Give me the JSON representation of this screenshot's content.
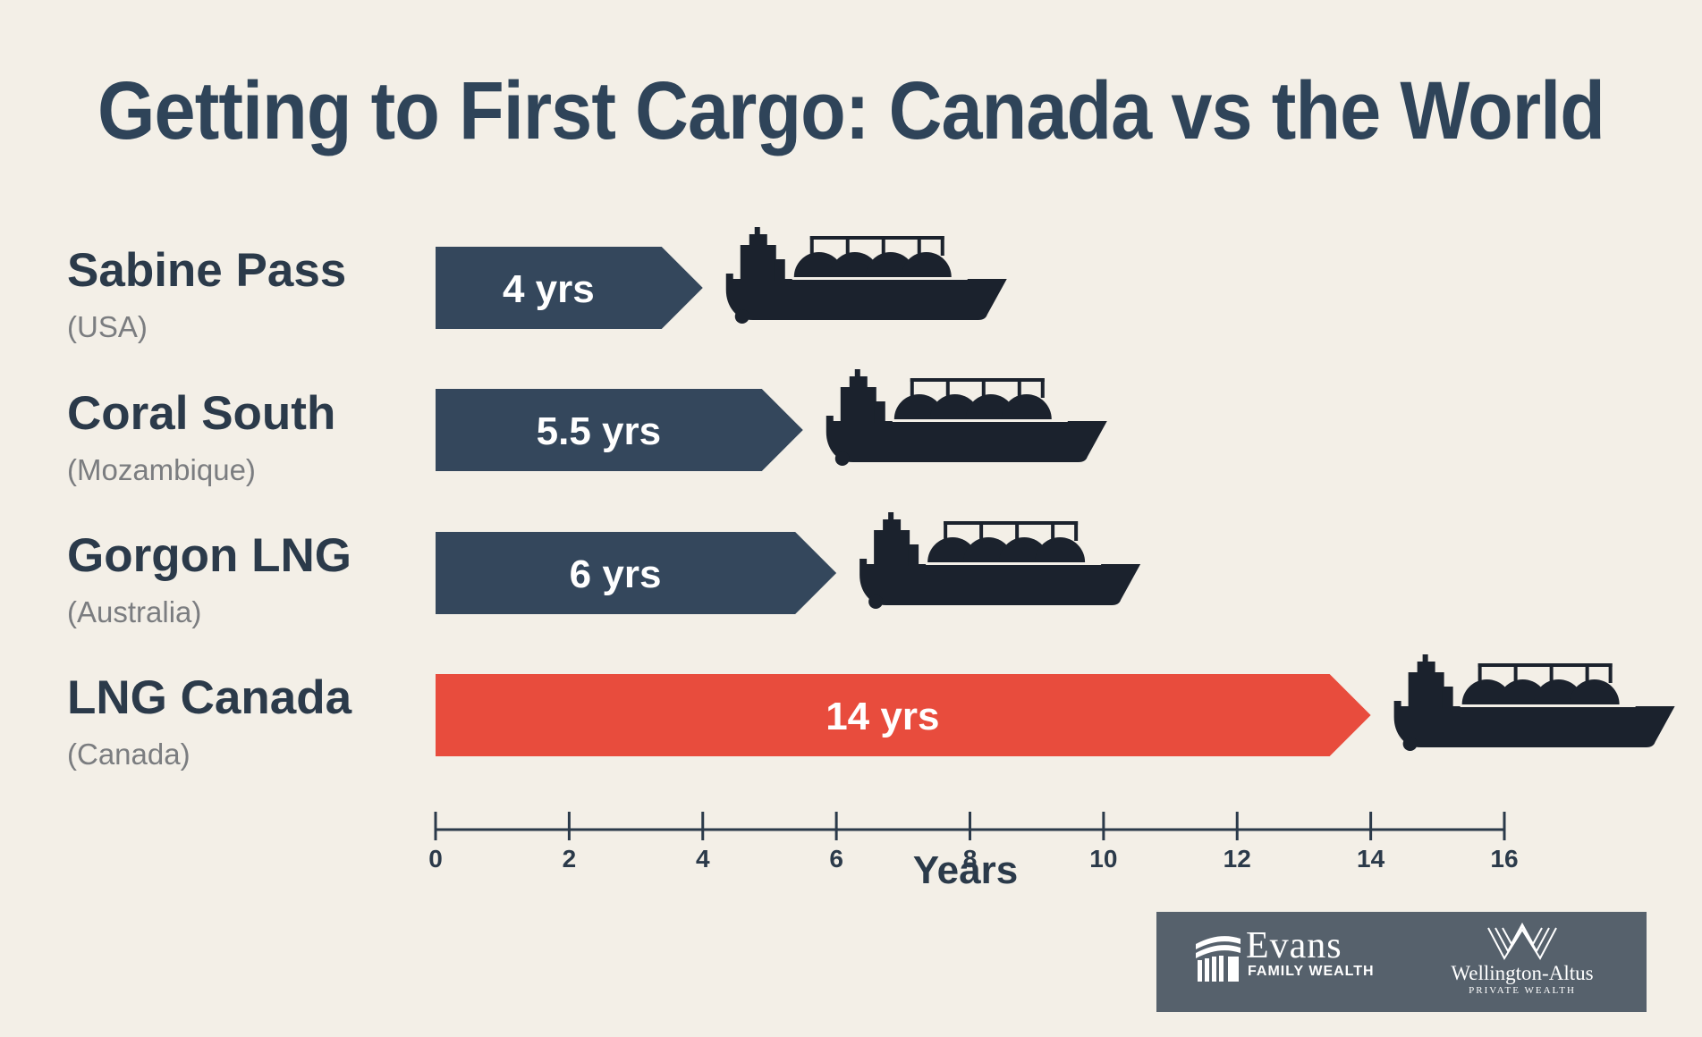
{
  "chart_data": {
    "type": "bar",
    "orientation": "horizontal",
    "title": "Getting to First Cargo: Canada vs the World",
    "categories": [
      "Sabine Pass",
      "Coral South",
      "Gorgon LNG",
      "LNG Canada"
    ],
    "subcategories": [
      "(USA)",
      "(Mozambique)",
      "(Australia)",
      "(Canada)"
    ],
    "values": [
      4,
      5.5,
      6,
      14
    ],
    "data_labels": [
      "4 yrs",
      "5.5 yrs",
      "6 yrs",
      "14 yrs"
    ],
    "bar_colors": [
      "#34475c",
      "#34475c",
      "#34475c",
      "#e84c3d"
    ],
    "xlabel": "Years",
    "xlim": [
      0,
      16
    ],
    "xticks": [
      0,
      2,
      4,
      6,
      8,
      10,
      12,
      14,
      16
    ],
    "xtick_labels": [
      "0",
      "2",
      "4",
      "6",
      "8",
      "10",
      "12",
      "14",
      "16"
    ],
    "marker_icon": "lng-tanker-ship-icon",
    "grid": false,
    "legend": "none"
  },
  "logos": {
    "evans": {
      "name": "Evans",
      "sub": "FAMILY WEALTH"
    },
    "wellington": {
      "name": "Wellington-Altus",
      "sub": "PRIVATE WEALTH"
    }
  },
  "colors": {
    "background": "#f3efe7",
    "title": "#2f4459",
    "bar_default": "#34475c",
    "bar_highlight": "#e84c3d",
    "ship": "#1b222d",
    "logo_bg": "#56616c"
  }
}
